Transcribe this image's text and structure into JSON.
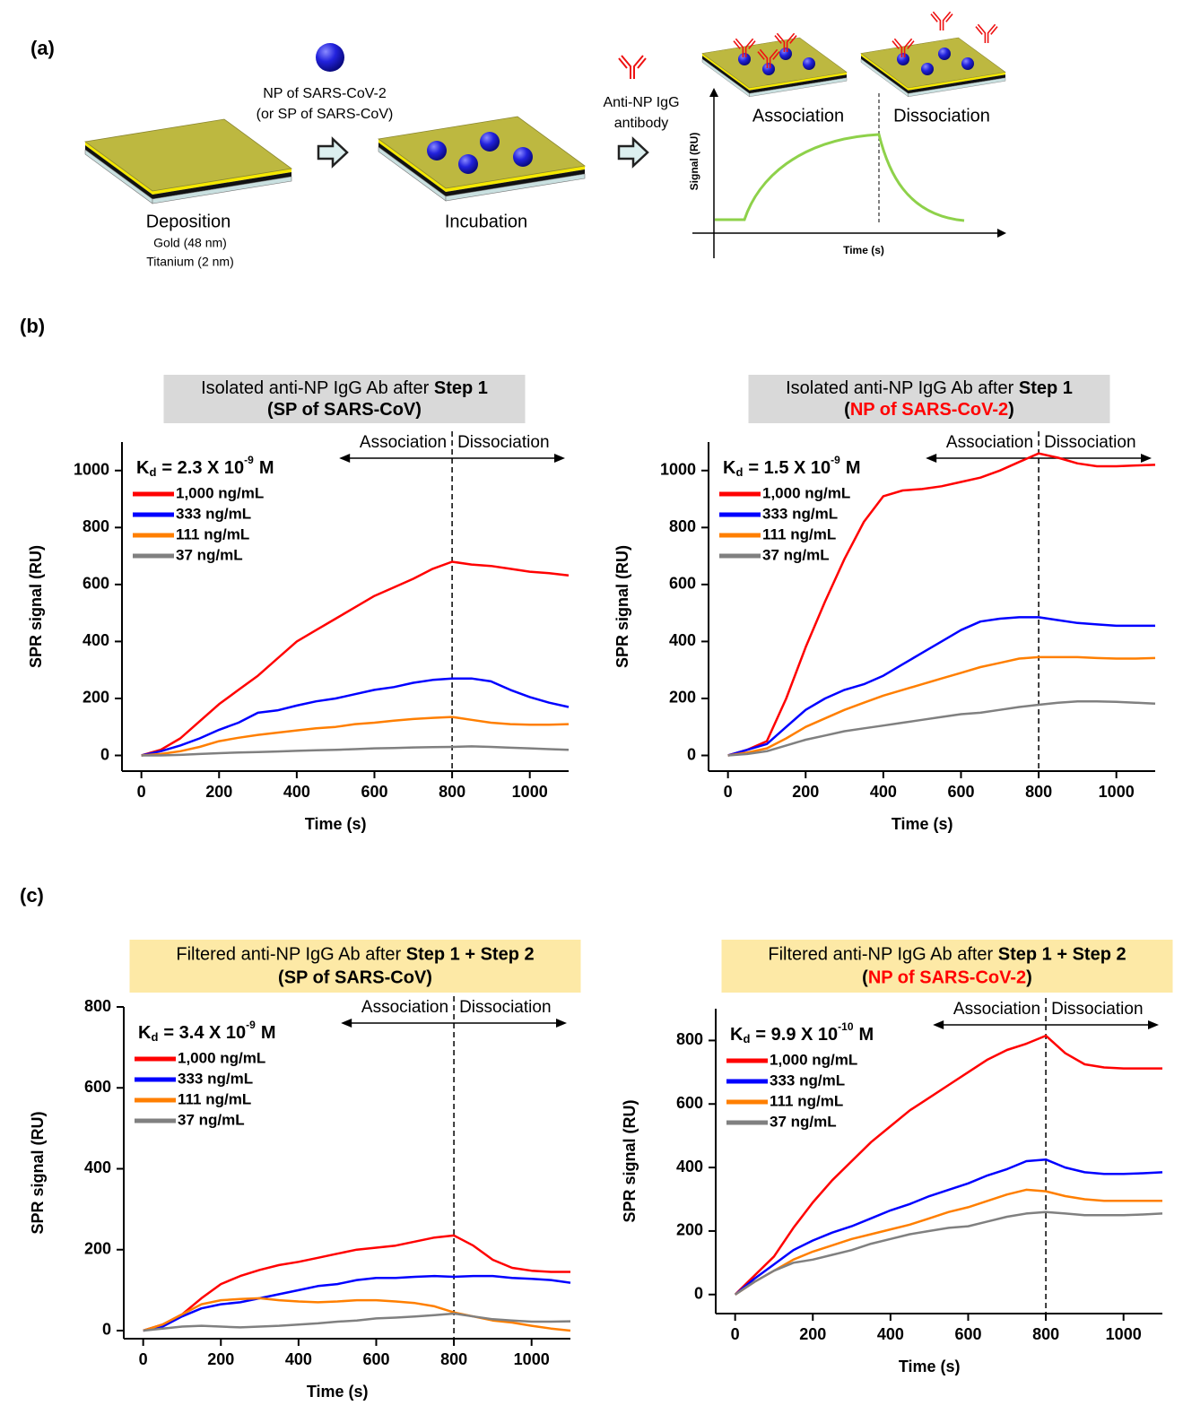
{
  "labels": [
    "(a)",
    "(b)",
    "(c)"
  ],
  "diagram": {
    "reagent": [
      "NP of SARS-CoV-2",
      "(or SP of SARS-CoV)"
    ],
    "deposition": {
      "label": "Deposition",
      "notes": [
        "Gold (48 nm)",
        "Titanium (2 nm)"
      ]
    },
    "incubation": "Incubation",
    "antibody": [
      "Anti-NP IgG",
      "antibody"
    ],
    "phases": [
      "Association",
      "Dissociation"
    ],
    "y_label": "Signal (RU)",
    "x_label": "Time (s)"
  },
  "chart_data": [
    {
      "type": "line",
      "title": [
        "Isolated anti-NP IgG Ab after ",
        "Step 1"
      ],
      "subtitle": [
        "(",
        "SP of SARS-CoV",
        ")"
      ],
      "title_box_color": "#d9d9d9",
      "subtitle_highlight_color": "#000000",
      "kd": {
        "symbol": "K",
        "subscript": "d",
        "text": "= 2.3 X 10",
        "exponent": "-9",
        "unit": "M"
      },
      "phase_labels": [
        "Association",
        "Dissociation"
      ],
      "phase_boundary": 800,
      "x_label": "Time (s)",
      "y_label": "SPR signal (RU)",
      "xlim": [
        -50,
        1100
      ],
      "ylim": [
        -55,
        1100
      ],
      "xticks": [
        0,
        200,
        400,
        600,
        800,
        1000
      ],
      "yticks": [
        0,
        200,
        400,
        600,
        800,
        1000
      ],
      "x": [
        0,
        50,
        100,
        150,
        200,
        250,
        300,
        350,
        400,
        450,
        500,
        550,
        600,
        650,
        700,
        750,
        800,
        850,
        900,
        950,
        1000,
        1050,
        1100
      ],
      "series": [
        {
          "name": "1,000 ng/mL",
          "color": "#ff0000",
          "values": [
            0,
            20,
            60,
            120,
            180,
            230,
            280,
            340,
            400,
            440,
            480,
            520,
            560,
            590,
            620,
            655,
            680,
            670,
            665,
            655,
            645,
            640,
            632
          ]
        },
        {
          "name": "333 ng/mL",
          "color": "#0000ff",
          "values": [
            0,
            15,
            35,
            60,
            90,
            115,
            150,
            158,
            175,
            190,
            200,
            215,
            230,
            240,
            255,
            265,
            270,
            270,
            260,
            230,
            205,
            185,
            170
          ]
        },
        {
          "name": "111 ng/mL",
          "color": "#ff7f00",
          "values": [
            0,
            5,
            15,
            30,
            50,
            62,
            72,
            80,
            88,
            95,
            100,
            110,
            115,
            122,
            128,
            132,
            135,
            125,
            115,
            110,
            108,
            108,
            110
          ]
        },
        {
          "name": "37 ng/mL",
          "color": "#808080",
          "values": [
            0,
            0,
            2,
            5,
            8,
            10,
            12,
            14,
            16,
            18,
            20,
            22,
            25,
            26,
            28,
            29,
            30,
            32,
            30,
            27,
            25,
            22,
            20
          ]
        }
      ]
    },
    {
      "type": "line",
      "title": [
        "Isolated anti-NP IgG Ab after ",
        "Step 1"
      ],
      "subtitle": [
        "(",
        "NP of SARS-CoV-2",
        ")"
      ],
      "title_box_color": "#d9d9d9",
      "subtitle_highlight_color": "#ff0000",
      "kd": {
        "symbol": "K",
        "subscript": "d",
        "text": "= 1.5 X 10",
        "exponent": "-9",
        "unit": "M"
      },
      "phase_labels": [
        "Association",
        "Dissociation"
      ],
      "phase_boundary": 800,
      "x_label": "Time (s)",
      "y_label": "SPR signal (RU)",
      "xlim": [
        -50,
        1100
      ],
      "ylim": [
        -55,
        1100
      ],
      "xticks": [
        0,
        200,
        400,
        600,
        800,
        1000
      ],
      "yticks": [
        0,
        200,
        400,
        600,
        800,
        1000
      ],
      "x": [
        0,
        50,
        100,
        150,
        200,
        250,
        300,
        350,
        400,
        450,
        500,
        550,
        600,
        650,
        700,
        750,
        800,
        850,
        900,
        950,
        1000,
        1050,
        1100
      ],
      "series": [
        {
          "name": "1,000 ng/mL",
          "color": "#ff0000",
          "values": [
            0,
            20,
            50,
            200,
            380,
            540,
            690,
            820,
            910,
            930,
            935,
            945,
            960,
            975,
            1000,
            1030,
            1060,
            1045,
            1025,
            1015,
            1015,
            1018,
            1020
          ]
        },
        {
          "name": "333 ng/mL",
          "color": "#0000ff",
          "values": [
            0,
            20,
            40,
            100,
            160,
            200,
            230,
            250,
            280,
            320,
            360,
            400,
            440,
            470,
            480,
            485,
            485,
            475,
            465,
            460,
            455,
            455,
            455
          ]
        },
        {
          "name": "111 ng/mL",
          "color": "#ff7f00",
          "values": [
            0,
            10,
            25,
            60,
            100,
            130,
            160,
            185,
            210,
            230,
            250,
            270,
            290,
            310,
            325,
            340,
            345,
            345,
            345,
            342,
            340,
            340,
            342
          ]
        },
        {
          "name": "37 ng/mL",
          "color": "#808080",
          "values": [
            0,
            5,
            15,
            35,
            55,
            70,
            85,
            95,
            105,
            115,
            125,
            135,
            145,
            150,
            160,
            170,
            178,
            185,
            190,
            190,
            188,
            185,
            182
          ]
        }
      ]
    },
    {
      "type": "line",
      "title": [
        "Filtered anti-NP IgG Ab after ",
        "Step 1 + Step 2"
      ],
      "subtitle": [
        "(",
        "SP of SARS-CoV",
        ")"
      ],
      "title_box_color": "#fde9a6",
      "subtitle_highlight_color": "#000000",
      "kd": {
        "symbol": "K",
        "subscript": "d",
        "text": "= 3.4 X 10",
        "exponent": "-9",
        "unit": "M"
      },
      "phase_labels": [
        "Association",
        "Dissociation"
      ],
      "phase_boundary": 800,
      "x_label": "Time (s)",
      "y_label": "SPR signal (RU)",
      "xlim": [
        -50,
        1100
      ],
      "ylim": [
        -20,
        800
      ],
      "xticks": [
        0,
        200,
        400,
        600,
        800,
        1000
      ],
      "yticks": [
        0,
        200,
        400,
        600,
        800
      ],
      "x": [
        0,
        50,
        100,
        150,
        200,
        250,
        300,
        350,
        400,
        450,
        500,
        550,
        600,
        650,
        700,
        750,
        800,
        850,
        900,
        950,
        1000,
        1050,
        1100
      ],
      "series": [
        {
          "name": "1,000 ng/mL",
          "color": "#ff0000",
          "values": [
            0,
            15,
            40,
            80,
            115,
            135,
            150,
            162,
            170,
            180,
            190,
            200,
            205,
            210,
            220,
            230,
            235,
            210,
            175,
            155,
            148,
            145,
            145
          ]
        },
        {
          "name": "333 ng/mL",
          "color": "#0000ff",
          "values": [
            0,
            10,
            35,
            55,
            65,
            70,
            80,
            90,
            100,
            110,
            115,
            125,
            130,
            130,
            133,
            135,
            133,
            135,
            135,
            130,
            128,
            125,
            118
          ]
        },
        {
          "name": "111 ng/mL",
          "color": "#ff7f00",
          "values": [
            0,
            15,
            40,
            65,
            75,
            78,
            80,
            75,
            72,
            70,
            72,
            75,
            75,
            72,
            68,
            60,
            45,
            35,
            25,
            20,
            12,
            5,
            0
          ]
        },
        {
          "name": "37 ng/mL",
          "color": "#808080",
          "values": [
            0,
            5,
            10,
            12,
            10,
            8,
            10,
            12,
            15,
            18,
            22,
            25,
            30,
            32,
            35,
            38,
            42,
            35,
            28,
            25,
            22,
            22,
            23
          ]
        }
      ]
    },
    {
      "type": "line",
      "title": [
        "Filtered anti-NP IgG Ab after ",
        "Step 1 + Step 2"
      ],
      "subtitle": [
        "(",
        "NP of SARS-CoV-2",
        ")"
      ],
      "title_box_color": "#fde9a6",
      "subtitle_highlight_color": "#ff0000",
      "kd": {
        "symbol": "K",
        "subscript": "d",
        "text": "= 9.9 X 10",
        "exponent": "-10",
        "unit": "M"
      },
      "phase_labels": [
        "Association",
        "Dissociation"
      ],
      "phase_boundary": 800,
      "x_label": "Time (s)",
      "y_label": "SPR signal (RU)",
      "xlim": [
        -50,
        1100
      ],
      "ylim": [
        -60,
        900
      ],
      "xticks": [
        0,
        200,
        400,
        600,
        800,
        1000
      ],
      "yticks": [
        0,
        200,
        400,
        600,
        800
      ],
      "x": [
        0,
        50,
        100,
        150,
        200,
        250,
        300,
        350,
        400,
        450,
        500,
        550,
        600,
        650,
        700,
        750,
        800,
        850,
        900,
        950,
        1000,
        1050,
        1100
      ],
      "series": [
        {
          "name": "1,000 ng/mL",
          "color": "#ff0000",
          "values": [
            0,
            60,
            120,
            210,
            290,
            360,
            420,
            480,
            530,
            580,
            620,
            660,
            700,
            740,
            770,
            790,
            815,
            760,
            725,
            715,
            712,
            712,
            712
          ]
        },
        {
          "name": "333 ng/mL",
          "color": "#0000ff",
          "values": [
            0,
            50,
            95,
            140,
            170,
            195,
            215,
            240,
            265,
            285,
            310,
            330,
            350,
            375,
            395,
            420,
            425,
            400,
            385,
            380,
            380,
            382,
            385
          ]
        },
        {
          "name": "111 ng/mL",
          "color": "#ff7f00",
          "values": [
            0,
            40,
            75,
            110,
            135,
            155,
            175,
            190,
            205,
            220,
            240,
            260,
            275,
            295,
            315,
            330,
            325,
            310,
            300,
            295,
            295,
            295,
            295
          ]
        },
        {
          "name": "37 ng/mL",
          "color": "#808080",
          "values": [
            0,
            40,
            75,
            100,
            110,
            125,
            140,
            160,
            175,
            190,
            200,
            210,
            215,
            230,
            245,
            255,
            260,
            255,
            250,
            250,
            250,
            252,
            255
          ]
        }
      ]
    }
  ]
}
